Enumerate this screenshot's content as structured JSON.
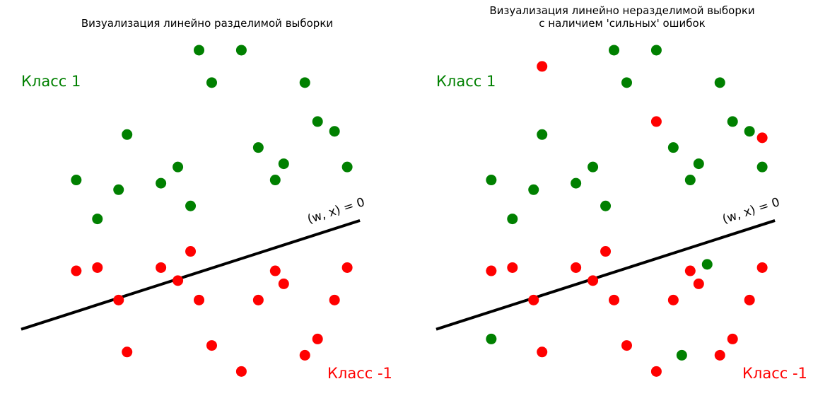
{
  "colors": {
    "positive": "#008000",
    "negative": "#ff0000",
    "line": "#000000"
  },
  "chart_data": [
    {
      "type": "scatter",
      "title": [
        "Визуализация линейно разделимой выборки"
      ],
      "class_labels": {
        "positive": "Класс 1",
        "negative": "Класс -1"
      },
      "separator": {
        "label": "(w, x) = 0",
        "from": [
          0.0,
          1.4
        ],
        "to": [
          8.0,
          4.75
        ]
      },
      "axes": {
        "visible": false,
        "grid": false,
        "xlim": [
          0,
          8.8
        ],
        "ylim": [
          -1.2,
          10.5
        ]
      },
      "points": [
        {
          "x": 4.2,
          "y": 10.0,
          "class": 1
        },
        {
          "x": 5.2,
          "y": 10.0,
          "class": 1
        },
        {
          "x": 4.5,
          "y": 9.0,
          "class": 1
        },
        {
          "x": 6.7,
          "y": 9.0,
          "class": 1
        },
        {
          "x": 7.0,
          "y": 7.8,
          "class": 1
        },
        {
          "x": 7.4,
          "y": 7.5,
          "class": 1
        },
        {
          "x": 2.5,
          "y": 7.4,
          "class": 1
        },
        {
          "x": 5.6,
          "y": 7.0,
          "class": 1
        },
        {
          "x": 6.2,
          "y": 6.5,
          "class": 1
        },
        {
          "x": 7.7,
          "y": 6.4,
          "class": 1
        },
        {
          "x": 3.7,
          "y": 6.4,
          "class": 1
        },
        {
          "x": 1.3,
          "y": 6.0,
          "class": 1
        },
        {
          "x": 6.0,
          "y": 6.0,
          "class": 1
        },
        {
          "x": 3.3,
          "y": 5.9,
          "class": 1
        },
        {
          "x": 2.3,
          "y": 5.7,
          "class": 1
        },
        {
          "x": 4.0,
          "y": 5.2,
          "class": 1
        },
        {
          "x": 1.8,
          "y": 4.8,
          "class": 1
        },
        {
          "x": 4.0,
          "y": 3.8,
          "class": -1
        },
        {
          "x": 1.8,
          "y": 3.3,
          "class": -1
        },
        {
          "x": 3.3,
          "y": 3.3,
          "class": -1
        },
        {
          "x": 7.7,
          "y": 3.3,
          "class": -1
        },
        {
          "x": 1.3,
          "y": 3.2,
          "class": -1
        },
        {
          "x": 6.0,
          "y": 3.2,
          "class": -1
        },
        {
          "x": 3.7,
          "y": 2.9,
          "class": -1
        },
        {
          "x": 6.2,
          "y": 2.8,
          "class": -1
        },
        {
          "x": 2.3,
          "y": 2.3,
          "class": -1
        },
        {
          "x": 4.2,
          "y": 2.3,
          "class": -1
        },
        {
          "x": 5.6,
          "y": 2.3,
          "class": -1
        },
        {
          "x": 7.4,
          "y": 2.3,
          "class": -1
        },
        {
          "x": 7.0,
          "y": 1.1,
          "class": -1
        },
        {
          "x": 4.5,
          "y": 0.9,
          "class": -1
        },
        {
          "x": 2.5,
          "y": 0.7,
          "class": -1
        },
        {
          "x": 6.7,
          "y": 0.6,
          "class": -1
        },
        {
          "x": 5.2,
          "y": 0.1,
          "class": -1
        }
      ]
    },
    {
      "type": "scatter",
      "title": [
        "Визуализация линейно неразделимой выборки",
        "с наличием 'сильных' ошибок"
      ],
      "class_labels": {
        "positive": "Класс 1",
        "negative": "Класс -1"
      },
      "separator": {
        "label": "(w, x) = 0",
        "from": [
          0.0,
          1.4
        ],
        "to": [
          8.0,
          4.75
        ]
      },
      "axes": {
        "visible": false,
        "grid": false,
        "xlim": [
          0,
          8.8
        ],
        "ylim": [
          -1.2,
          10.5
        ]
      },
      "points": [
        {
          "x": 4.2,
          "y": 10.0,
          "class": 1
        },
        {
          "x": 5.2,
          "y": 10.0,
          "class": 1
        },
        {
          "x": 2.5,
          "y": 9.5,
          "class": -1
        },
        {
          "x": 4.5,
          "y": 9.0,
          "class": 1
        },
        {
          "x": 6.7,
          "y": 9.0,
          "class": 1
        },
        {
          "x": 5.2,
          "y": 7.8,
          "class": -1
        },
        {
          "x": 7.0,
          "y": 7.8,
          "class": 1
        },
        {
          "x": 7.4,
          "y": 7.5,
          "class": 1
        },
        {
          "x": 7.7,
          "y": 7.3,
          "class": -1
        },
        {
          "x": 2.5,
          "y": 7.4,
          "class": 1
        },
        {
          "x": 5.6,
          "y": 7.0,
          "class": 1
        },
        {
          "x": 6.2,
          "y": 6.5,
          "class": 1
        },
        {
          "x": 7.7,
          "y": 6.4,
          "class": 1
        },
        {
          "x": 3.7,
          "y": 6.4,
          "class": 1
        },
        {
          "x": 1.3,
          "y": 6.0,
          "class": 1
        },
        {
          "x": 6.0,
          "y": 6.0,
          "class": 1
        },
        {
          "x": 3.3,
          "y": 5.9,
          "class": 1
        },
        {
          "x": 2.3,
          "y": 5.7,
          "class": 1
        },
        {
          "x": 4.0,
          "y": 5.2,
          "class": 1
        },
        {
          "x": 1.8,
          "y": 4.8,
          "class": 1
        },
        {
          "x": 4.0,
          "y": 3.8,
          "class": -1
        },
        {
          "x": 6.4,
          "y": 3.4,
          "class": 1
        },
        {
          "x": 1.8,
          "y": 3.3,
          "class": -1
        },
        {
          "x": 3.3,
          "y": 3.3,
          "class": -1
        },
        {
          "x": 7.7,
          "y": 3.3,
          "class": -1
        },
        {
          "x": 1.3,
          "y": 3.2,
          "class": -1
        },
        {
          "x": 6.0,
          "y": 3.2,
          "class": -1
        },
        {
          "x": 3.7,
          "y": 2.9,
          "class": -1
        },
        {
          "x": 6.2,
          "y": 2.8,
          "class": -1
        },
        {
          "x": 2.3,
          "y": 2.3,
          "class": -1
        },
        {
          "x": 4.2,
          "y": 2.3,
          "class": -1
        },
        {
          "x": 5.6,
          "y": 2.3,
          "class": -1
        },
        {
          "x": 7.4,
          "y": 2.3,
          "class": -1
        },
        {
          "x": 1.3,
          "y": 1.1,
          "class": 1
        },
        {
          "x": 7.0,
          "y": 1.1,
          "class": -1
        },
        {
          "x": 4.5,
          "y": 0.9,
          "class": -1
        },
        {
          "x": 2.5,
          "y": 0.7,
          "class": -1
        },
        {
          "x": 5.8,
          "y": 0.6,
          "class": 1
        },
        {
          "x": 6.7,
          "y": 0.6,
          "class": -1
        },
        {
          "x": 5.2,
          "y": 0.1,
          "class": -1
        }
      ]
    }
  ]
}
